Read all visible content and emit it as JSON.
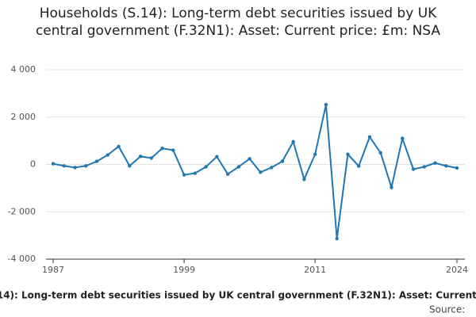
{
  "chart_data": {
    "type": "line",
    "title": "Households (S.14): Long-term debt securities issued by UK central government (F.32N1): Asset: Current price: £m: NSA",
    "source_label": "Source:",
    "x": [
      1987,
      1988,
      1989,
      1990,
      1991,
      1992,
      1993,
      1994,
      1995,
      1996,
      1997,
      1998,
      1999,
      2000,
      2001,
      2002,
      2003,
      2004,
      2005,
      2006,
      2007,
      2008,
      2009,
      2010,
      2011,
      2012,
      2013,
      2014,
      2015,
      2016,
      2017,
      2018,
      2019,
      2020,
      2021,
      2022,
      2023,
      2024
    ],
    "series": [
      {
        "color": "#1f78b4",
        "values": [
          30,
          -60,
          -130,
          -60,
          130,
          400,
          760,
          -60,
          340,
          270,
          680,
          600,
          -440,
          -370,
          -100,
          330,
          -410,
          -100,
          240,
          -330,
          -130,
          130,
          960,
          -630,
          430,
          2530,
          -3130,
          430,
          -70,
          1160,
          490,
          -970,
          1100,
          -200,
          -100,
          60,
          -60,
          -150
        ]
      }
    ],
    "xlim": [
      1987,
      2024
    ],
    "xticks": [
      1987,
      1999,
      2011,
      2024
    ],
    "ylim": [
      -4000,
      4000
    ],
    "yticks": [
      {
        "value": -4000,
        "label": "-4 000"
      },
      {
        "value": -2000,
        "label": "-2 000"
      },
      0,
      {
        "value": 2000,
        "label": "2 000"
      },
      {
        "value": 4000,
        "label": "4 000"
      }
    ],
    "grid": true
  }
}
